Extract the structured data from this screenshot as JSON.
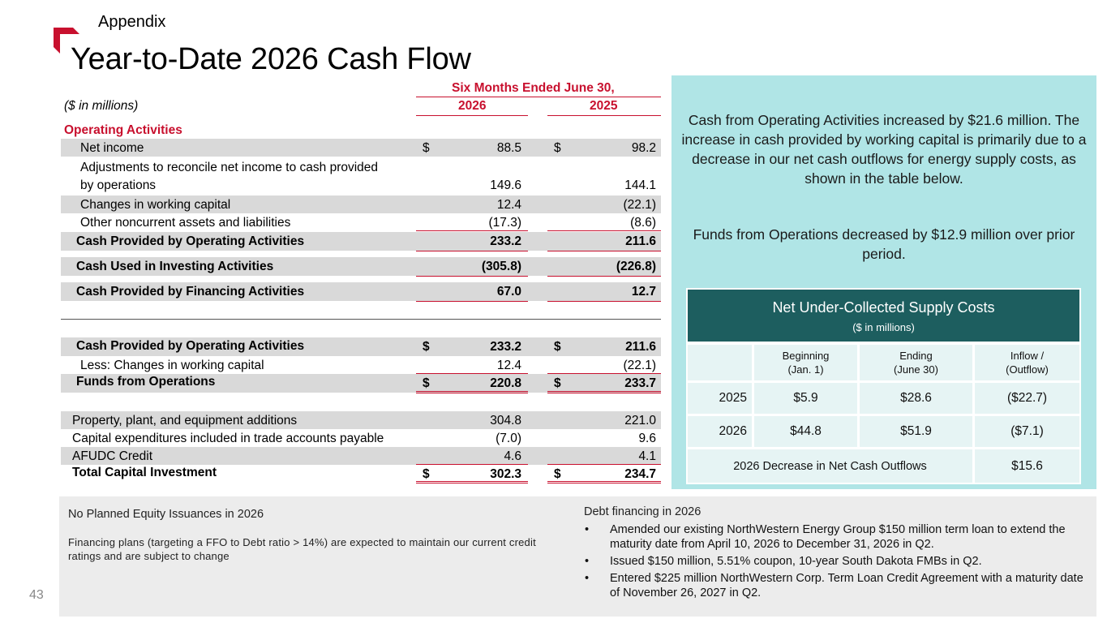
{
  "header": {
    "section": "Appendix",
    "title": "Year-to-Date 2026 Cash Flow"
  },
  "colors": {
    "accent": "#c8102e",
    "panel": "#b0e5e6",
    "table_head": "#1d5e5f",
    "shade": "#d9d9d9"
  },
  "table": {
    "period_header": "Six Months Ended June 30,",
    "units": "($ in millions)",
    "col_2026": "2026",
    "col_2025": "2025",
    "operating_header": "Operating Activities",
    "rows": {
      "net_income": {
        "label": "Net income",
        "cur_a": "$",
        "a": "88.5",
        "cur_b": "$",
        "b": "98.2"
      },
      "adjustments": {
        "label1": "Adjustments to reconcile net income to cash provided",
        "label2": "by operations",
        "a": "149.6",
        "b": "144.1"
      },
      "working_capital": {
        "label": "Changes in working capital",
        "a": "12.4",
        "b": "(22.1)"
      },
      "other_noncurrent": {
        "label": "Other noncurrent assets and liabilities",
        "a": "(17.3)",
        "b": "(8.6)"
      },
      "cash_operating": {
        "label": "Cash Provided by Operating Activities",
        "a": "233.2",
        "b": "211.6"
      },
      "cash_investing": {
        "label": "Cash Used in Investing Activities",
        "a": "(305.8)",
        "b": "(226.8)"
      },
      "cash_financing": {
        "label": "Cash Provided by Financing Activities",
        "a": "67.0",
        "b": "12.7"
      },
      "cash_operating2": {
        "label": "Cash Provided by Operating Activities",
        "cur_a": "$",
        "a": "233.2",
        "cur_b": "$",
        "b": "211.6"
      },
      "less_working_capital": {
        "label": "Less: Changes in working capital",
        "a": "12.4",
        "b": "(22.1)"
      },
      "ffo": {
        "label": "Funds from Operations",
        "cur_a": "$",
        "a": "220.8",
        "cur_b": "$",
        "b": "233.7"
      },
      "ppe": {
        "label": "Property, plant, and equipment additions",
        "a": "304.8",
        "b": "221.0"
      },
      "capex_payable": {
        "label": "Capital expenditures included in trade accounts payable",
        "a": "(7.0)",
        "b": "9.6"
      },
      "afudc": {
        "label": "AFUDC Credit",
        "a": "4.6",
        "b": "4.1"
      },
      "total_capital": {
        "label": "Total Capital Investment",
        "cur_a": "$",
        "a": "302.3",
        "cur_b": "$",
        "b": "234.7"
      }
    }
  },
  "panel": {
    "para1": "Cash from Operating Activities increased by $21.6 million. The increase in cash provided by working capital is primarily due to a decrease in our net cash outflows for energy supply costs, as shown in the table below.",
    "para2": "Funds from Operations decreased by $12.9 million over prior period.",
    "supply": {
      "title": "Net Under-Collected Supply Costs",
      "subtitle": "($ in millions)",
      "col_begin_1": "Beginning",
      "col_begin_2": "(Jan. 1)",
      "col_end_1": "Ending",
      "col_end_2": "(June 30)",
      "col_flow_1": "Inflow /",
      "col_flow_2": "(Outflow)",
      "rows": [
        {
          "year": "2025",
          "begin": "$5.9",
          "end": "$28.6",
          "flow": "($22.7)"
        },
        {
          "year": "2026",
          "begin": "$44.8",
          "end": "$51.9",
          "flow": "($7.1)"
        }
      ],
      "decrease_label": "2026 Decrease in Net Cash Outflows",
      "decrease_value": "$15.6"
    }
  },
  "bottom": {
    "left_title": "No Planned Equity Issuances in 2026",
    "left_body": "Financing plans (targeting a FFO to Debt ratio > 14%) are expected to maintain our current credit ratings and are subject to change",
    "right_title": "Debt financing in 2026",
    "bullet_char": "•",
    "bullets": [
      "Amended our existing NorthWestern Energy Group $150 million term loan to extend the maturity date from April 10, 2026 to December 31, 2026 in Q2.",
      "Issued $150 million, 5.51% coupon, 10-year South Dakota FMBs in Q2.",
      "Entered $225 million NorthWestern Corp. Term Loan Credit Agreement with a maturity date of November 26, 2027 in Q2."
    ]
  },
  "page_number": "43"
}
